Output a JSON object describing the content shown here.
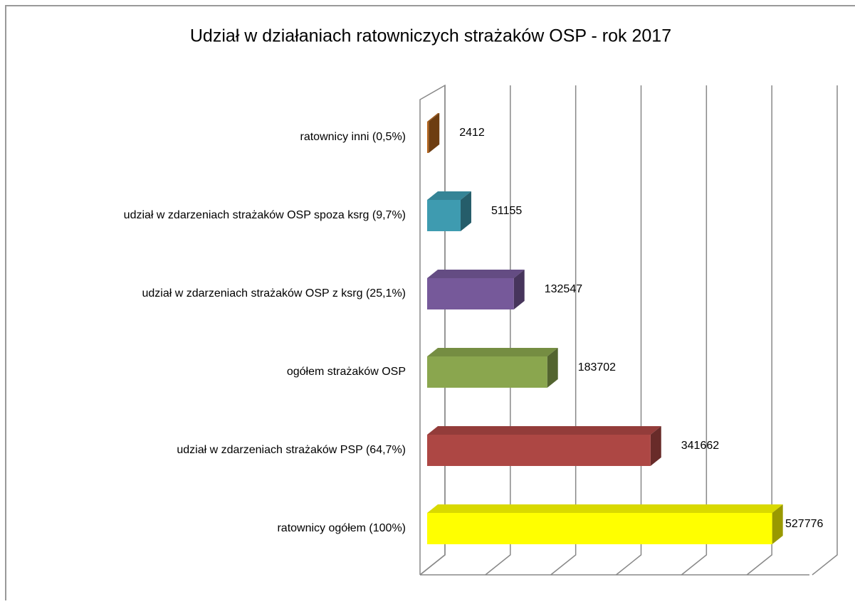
{
  "chart_data": {
    "type": "bar3d_horizontal",
    "title": "Udział w działaniach ratowniczych strażaków OSP - rok 2017",
    "categories": [
      "ratownicy inni (0,5%)",
      "udział w zdarzeniach strażaków OSP spoza ksrg (9,7%)",
      "udział w zdarzeniach strażaków  OSP z ksrg (25,1%)",
      "ogółem strażaków OSP",
      "udział w zdarzeniach strażaków PSP (64,7%)",
      "ratownicy ogółem (100%)"
    ],
    "values": [
      2412,
      51155,
      132547,
      183702,
      341662,
      527776
    ],
    "colors": [
      "#b5651d",
      "#3e9bb0",
      "#76599a",
      "#8aa64e",
      "#ad4744",
      "#ffff00"
    ],
    "xlim": [
      0,
      600000
    ],
    "xticks": [
      0,
      100000,
      200000,
      300000,
      400000,
      500000,
      600000
    ],
    "grid": true
  }
}
